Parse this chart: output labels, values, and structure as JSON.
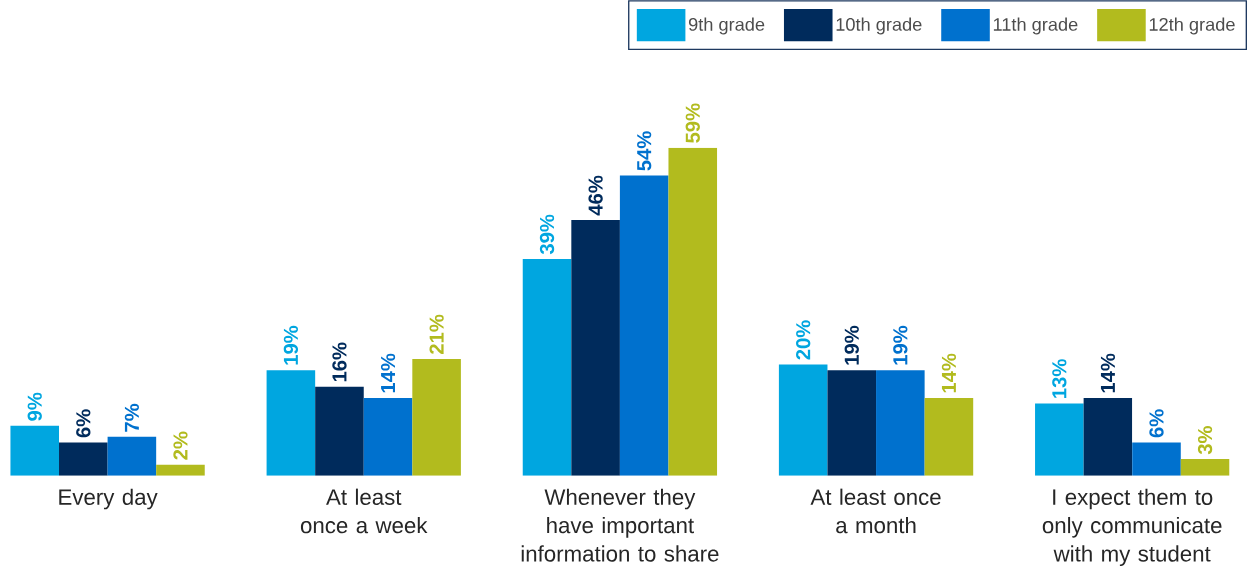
{
  "chart_data": {
    "type": "bar",
    "categories": [
      "Every day",
      "At least once a week",
      "Whenever they have important information to share",
      "At least once a month",
      "I expect them to only communicate with my student"
    ],
    "series": [
      {
        "name": "9th grade",
        "color": "#00a6e0",
        "values": [
          9,
          19,
          39,
          20,
          13
        ],
        "value_labels": [
          "9%",
          "19%",
          "39%",
          "20%",
          "13%"
        ]
      },
      {
        "name": "10th grade",
        "color": "#002b5c",
        "values": [
          6,
          16,
          46,
          19,
          14
        ],
        "value_labels": [
          "6%",
          "16%",
          "46%",
          "19%",
          "14%"
        ]
      },
      {
        "name": "11th grade",
        "color": "#0071ce",
        "values": [
          7,
          14,
          54,
          19,
          6
        ],
        "value_labels": [
          "7%",
          "14%",
          "54%",
          "19%",
          "6%"
        ]
      },
      {
        "name": "12th grade",
        "color": "#b2bb1e",
        "values": [
          2,
          21,
          59,
          14,
          3
        ],
        "value_labels": [
          "2%",
          "21%",
          "59%",
          "14%",
          "3%"
        ]
      }
    ],
    "legend": "top right",
    "tick_labels": "x"
  }
}
